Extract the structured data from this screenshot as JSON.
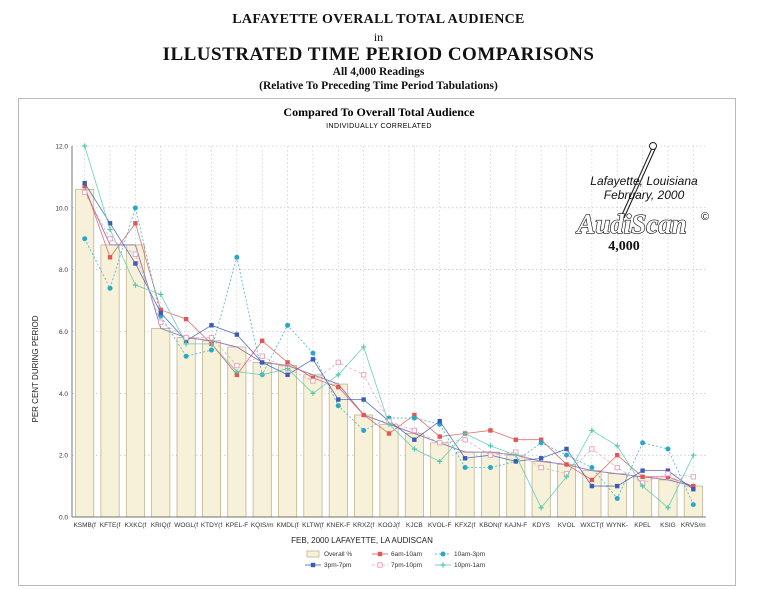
{
  "header": {
    "line1": "LAFAYETTE OVERALL TOTAL AUDIENCE",
    "line2": "in",
    "line3": "ILLUSTRATED TIME PERIOD COMPARISONS",
    "line4": "All 4,000 Readings",
    "line5": "(Relative To Preceding Time Period Tabulations)"
  },
  "annotation": {
    "place": "Lafayette, Louisiana",
    "date": "February, 2000",
    "brand": "AudiScan",
    "copyright": "©",
    "count": "4,000"
  },
  "colors": {
    "bar_fill": "#f6f1d8",
    "bar_stroke": "#b8ac80",
    "overall_line": "#9a7fb8",
    "s6to10": "#e05555",
    "s10to3": "#2aa7c9",
    "s3to7": "#3a5bb8",
    "s7to10": "#e8a0b8",
    "s10to1": "#55c8b0"
  },
  "chart_data": {
    "type": "bar",
    "title": "Compared To Overall Total Audience",
    "subtitle": "INDIVIDUALLY CORRELATED",
    "xlabel": "FEB, 2000  LAFAYETTE, LA  AUDISCAN",
    "ylabel": "PER CENT DURING PERIOD",
    "ylim": [
      0,
      12
    ],
    "yticks": [
      "0.0",
      "2.0",
      "4.0",
      "6.0",
      "8.0",
      "10.0",
      "12.0"
    ],
    "grid": true,
    "legend_position": "bottom",
    "categories": [
      "KSMB(f",
      "KFTE(f",
      "KXKC(f",
      "KRIQ(f",
      "WOGL(f",
      "KTDY(f",
      "KPEL-F",
      "KQIS/m",
      "KMDL(f",
      "KLTW(f",
      "KNEK-F",
      "KRXZ(f",
      "KOOJ(f",
      "KJCB",
      "KVOL-F",
      "KFXZ(f",
      "KBON(f",
      "KAJN-F",
      "KDYS",
      "KVOL",
      "WXCT(f",
      "WYNK-",
      "KPEL",
      "KSIG",
      "KRVS/m"
    ],
    "series": [
      {
        "name": "Overall %",
        "kind": "bar",
        "values": [
          10.6,
          8.8,
          8.8,
          6.1,
          5.8,
          5.7,
          5.5,
          5.0,
          4.9,
          4.6,
          4.3,
          3.3,
          3.0,
          2.7,
          2.4,
          2.1,
          2.1,
          2.0,
          1.8,
          1.7,
          1.5,
          1.4,
          1.3,
          1.2,
          1.0
        ]
      },
      {
        "name": "6am-10am",
        "values": [
          10.7,
          8.4,
          9.5,
          6.7,
          6.4,
          5.6,
          4.6,
          5.7,
          5.0,
          4.5,
          4.2,
          3.3,
          2.7,
          3.3,
          2.6,
          2.7,
          2.8,
          2.5,
          2.5,
          1.7,
          1.2,
          2.0,
          1.3,
          1.3,
          1.0
        ]
      },
      {
        "name": "10am-3pm",
        "values": [
          9.0,
          7.4,
          10.0,
          6.5,
          5.2,
          5.4,
          8.4,
          4.6,
          6.2,
          5.3,
          3.6,
          2.8,
          3.2,
          3.2,
          3.0,
          1.6,
          1.6,
          1.8,
          2.4,
          2.0,
          1.6,
          0.6,
          2.4,
          2.2,
          0.4
        ]
      },
      {
        "name": "3pm-7pm",
        "values": [
          10.8,
          9.5,
          8.2,
          6.6,
          5.7,
          6.2,
          5.9,
          5.0,
          4.6,
          5.1,
          3.8,
          3.8,
          3.1,
          2.5,
          3.1,
          1.9,
          2.0,
          1.8,
          1.9,
          2.2,
          1.0,
          1.0,
          1.5,
          1.5,
          0.9
        ]
      },
      {
        "name": "7pm-10pm",
        "values": [
          10.5,
          9.0,
          8.5,
          6.3,
          5.8,
          5.8,
          4.9,
          5.2,
          4.8,
          4.4,
          5.0,
          4.6,
          3.1,
          2.8,
          2.4,
          2.5,
          2.0,
          2.1,
          1.6,
          1.4,
          2.2,
          1.6,
          1.1,
          1.4,
          1.3
        ]
      },
      {
        "name": "10pm-1am",
        "values": [
          12.0,
          9.3,
          7.5,
          7.2,
          5.6,
          5.6,
          4.7,
          4.6,
          4.8,
          4.0,
          4.6,
          5.5,
          3.0,
          2.2,
          1.8,
          2.7,
          2.3,
          2.0,
          0.3,
          1.3,
          2.8,
          2.3,
          1.0,
          0.3,
          2.0
        ]
      }
    ]
  }
}
